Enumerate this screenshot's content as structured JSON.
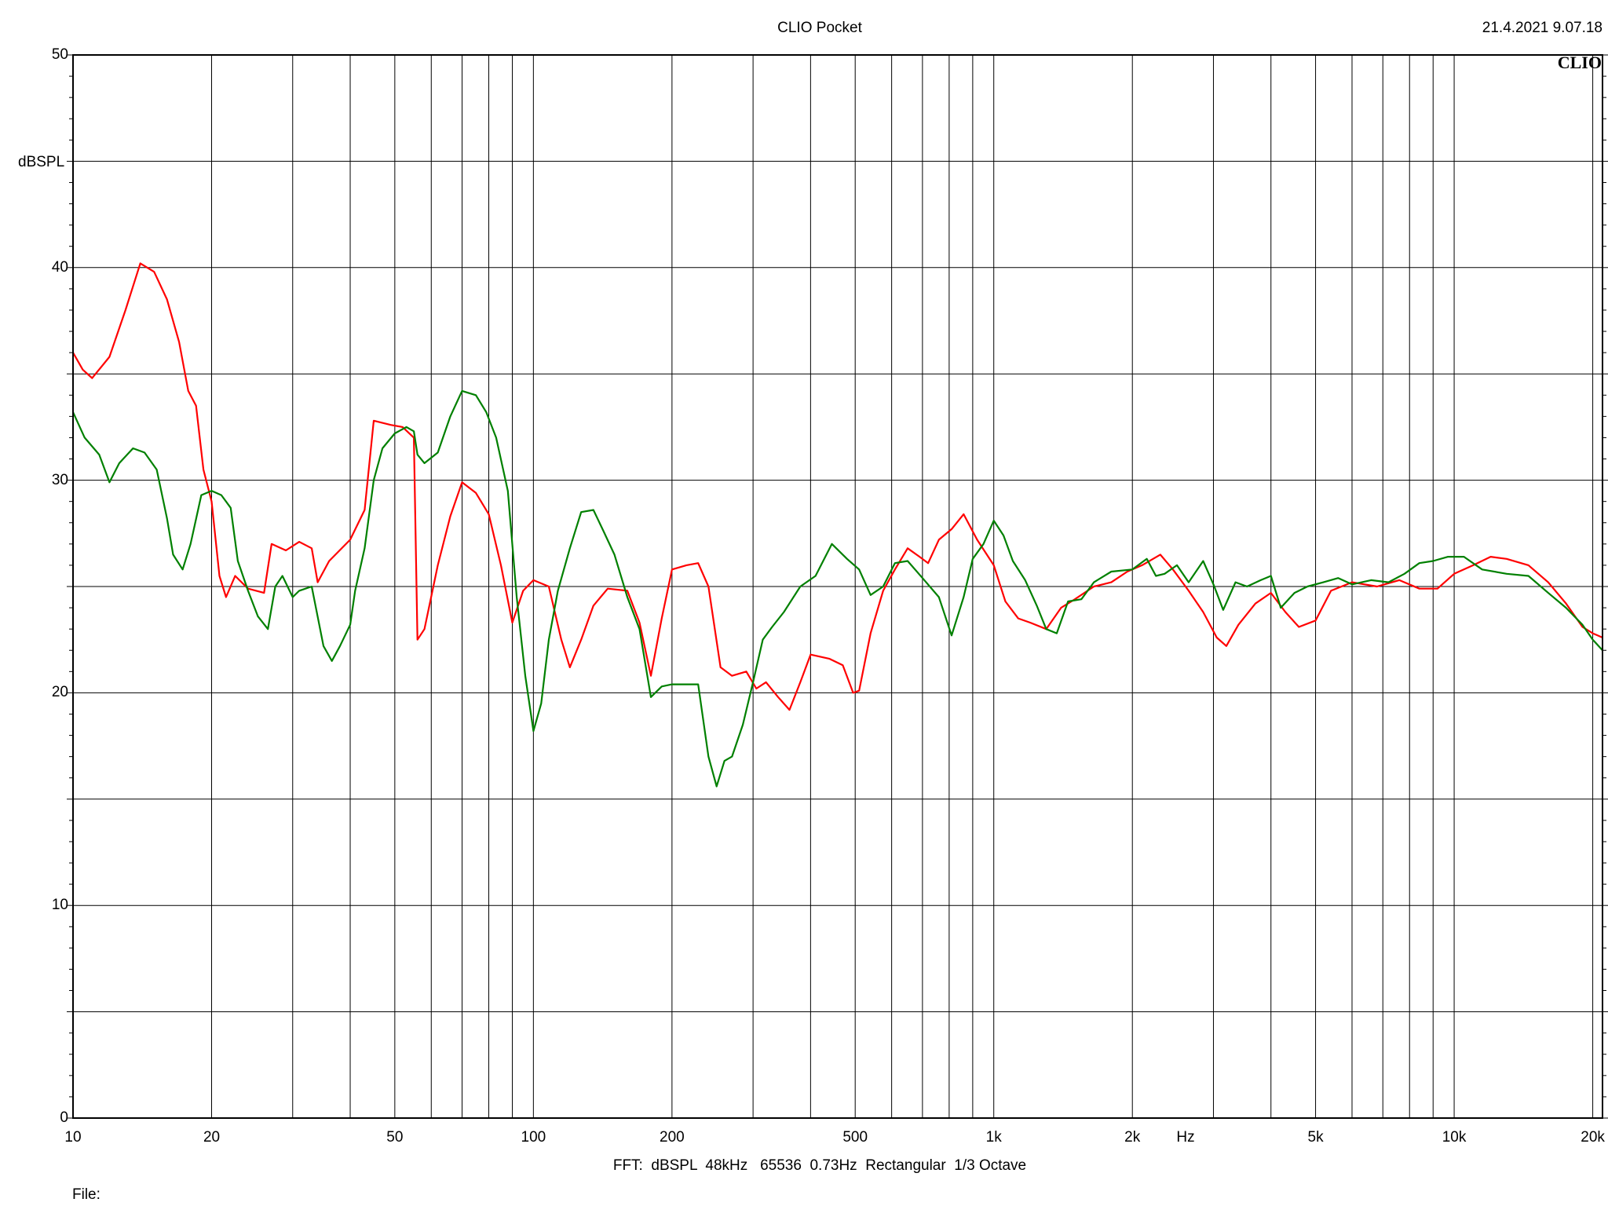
{
  "header": {
    "title": "CLIO Pocket",
    "timestamp": "21.4.2021 9.07.18",
    "logo": "CLIO"
  },
  "footer": {
    "settings": "FFT:  dBSPL  48kHz   65536  0.73Hz  Rectangular  1/3 Octave",
    "file_label": "File:"
  },
  "chart_data": {
    "type": "line",
    "x_scale": "log",
    "xlim": [
      10,
      21000
    ],
    "ylim": [
      0,
      50
    ],
    "grid": true,
    "ylabel": "dBSPL",
    "xlabel": "Hz",
    "y_ticks": [
      0,
      10,
      20,
      30,
      40,
      50
    ],
    "x_ticks": [
      {
        "v": 10,
        "label": "10"
      },
      {
        "v": 20,
        "label": "20"
      },
      {
        "v": 50,
        "label": "50"
      },
      {
        "v": 100,
        "label": "100"
      },
      {
        "v": 200,
        "label": "200"
      },
      {
        "v": 500,
        "label": "500"
      },
      {
        "v": 1000,
        "label": "1k"
      },
      {
        "v": 2000,
        "label": "2k"
      },
      {
        "v": 5000,
        "label": "5k"
      },
      {
        "v": 10000,
        "label": "10k"
      },
      {
        "v": 20000,
        "label": "20k"
      }
    ],
    "series": [
      {
        "color": "#ff0000",
        "points": [
          [
            10,
            36.0
          ],
          [
            10.5,
            35.2
          ],
          [
            11,
            34.8
          ],
          [
            12,
            35.8
          ],
          [
            13,
            38.0
          ],
          [
            14,
            40.2
          ],
          [
            15,
            39.8
          ],
          [
            16,
            38.5
          ],
          [
            17,
            36.5
          ],
          [
            17.8,
            34.2
          ],
          [
            18.5,
            33.5
          ],
          [
            19.2,
            30.5
          ],
          [
            20,
            29.0
          ],
          [
            20.8,
            25.5
          ],
          [
            21.5,
            24.5
          ],
          [
            22.5,
            25.5
          ],
          [
            24,
            24.9
          ],
          [
            26,
            24.7
          ],
          [
            27,
            27.0
          ],
          [
            29,
            26.7
          ],
          [
            31,
            27.1
          ],
          [
            33,
            26.8
          ],
          [
            34,
            25.2
          ],
          [
            36,
            26.2
          ],
          [
            40,
            27.2
          ],
          [
            43,
            28.6
          ],
          [
            45,
            32.8
          ],
          [
            49,
            32.6
          ],
          [
            52,
            32.5
          ],
          [
            55,
            32.0
          ],
          [
            56,
            22.5
          ],
          [
            58,
            23.0
          ],
          [
            62,
            26.0
          ],
          [
            66,
            28.3
          ],
          [
            70,
            29.9
          ],
          [
            75,
            29.4
          ],
          [
            80,
            28.4
          ],
          [
            85,
            26.0
          ],
          [
            90,
            23.3
          ],
          [
            95,
            24.8
          ],
          [
            100,
            25.3
          ],
          [
            108,
            25.0
          ],
          [
            115,
            22.5
          ],
          [
            120,
            21.2
          ],
          [
            127,
            22.5
          ],
          [
            135,
            24.1
          ],
          [
            145,
            24.9
          ],
          [
            160,
            24.8
          ],
          [
            170,
            23.3
          ],
          [
            180,
            20.8
          ],
          [
            190,
            23.5
          ],
          [
            200,
            25.8
          ],
          [
            215,
            26.0
          ],
          [
            228,
            26.1
          ],
          [
            240,
            25.0
          ],
          [
            255,
            21.2
          ],
          [
            270,
            20.8
          ],
          [
            290,
            21.0
          ],
          [
            305,
            20.2
          ],
          [
            320,
            20.5
          ],
          [
            340,
            19.8
          ],
          [
            360,
            19.2
          ],
          [
            380,
            20.5
          ],
          [
            400,
            21.8
          ],
          [
            440,
            21.6
          ],
          [
            470,
            21.3
          ],
          [
            495,
            20.0
          ],
          [
            510,
            20.1
          ],
          [
            540,
            22.8
          ],
          [
            575,
            24.8
          ],
          [
            610,
            25.8
          ],
          [
            650,
            26.8
          ],
          [
            690,
            26.4
          ],
          [
            720,
            26.1
          ],
          [
            760,
            27.2
          ],
          [
            810,
            27.7
          ],
          [
            860,
            28.4
          ],
          [
            920,
            27.2
          ],
          [
            1000,
            26.0
          ],
          [
            1060,
            24.3
          ],
          [
            1130,
            23.5
          ],
          [
            1200,
            23.3
          ],
          [
            1300,
            23.0
          ],
          [
            1400,
            24.0
          ],
          [
            1500,
            24.4
          ],
          [
            1650,
            25.0
          ],
          [
            1800,
            25.2
          ],
          [
            1950,
            25.7
          ],
          [
            2100,
            26.0
          ],
          [
            2300,
            26.5
          ],
          [
            2450,
            25.8
          ],
          [
            2650,
            24.8
          ],
          [
            2850,
            23.8
          ],
          [
            3050,
            22.6
          ],
          [
            3200,
            22.2
          ],
          [
            3400,
            23.2
          ],
          [
            3700,
            24.2
          ],
          [
            4000,
            24.7
          ],
          [
            4300,
            23.8
          ],
          [
            4600,
            23.1
          ],
          [
            5000,
            23.4
          ],
          [
            5400,
            24.8
          ],
          [
            6000,
            25.2
          ],
          [
            6800,
            25.0
          ],
          [
            7600,
            25.3
          ],
          [
            8400,
            24.9
          ],
          [
            9200,
            24.9
          ],
          [
            10000,
            25.6
          ],
          [
            11000,
            26.0
          ],
          [
            12000,
            26.4
          ],
          [
            13000,
            26.3
          ],
          [
            14500,
            26.0
          ],
          [
            16000,
            25.2
          ],
          [
            17500,
            24.2
          ],
          [
            19000,
            23.1
          ],
          [
            20000,
            22.8
          ],
          [
            21000,
            22.6
          ]
        ]
      },
      {
        "color": "#008000",
        "points": [
          [
            10,
            33.2
          ],
          [
            10.6,
            32.0
          ],
          [
            11.4,
            31.2
          ],
          [
            12,
            29.9
          ],
          [
            12.6,
            30.8
          ],
          [
            13.5,
            31.5
          ],
          [
            14.3,
            31.3
          ],
          [
            15.2,
            30.5
          ],
          [
            16,
            28.2
          ],
          [
            16.5,
            26.5
          ],
          [
            17.3,
            25.8
          ],
          [
            18,
            27.0
          ],
          [
            19,
            29.3
          ],
          [
            20,
            29.5
          ],
          [
            21,
            29.3
          ],
          [
            22,
            28.7
          ],
          [
            22.8,
            26.2
          ],
          [
            24,
            24.8
          ],
          [
            25.2,
            23.6
          ],
          [
            26.5,
            23.0
          ],
          [
            27.5,
            25.0
          ],
          [
            28.5,
            25.5
          ],
          [
            30,
            24.5
          ],
          [
            31,
            24.8
          ],
          [
            33,
            25.0
          ],
          [
            35,
            22.2
          ],
          [
            36.5,
            21.5
          ],
          [
            38,
            22.2
          ],
          [
            40,
            23.2
          ],
          [
            41,
            24.8
          ],
          [
            43,
            26.8
          ],
          [
            45,
            30.0
          ],
          [
            47,
            31.5
          ],
          [
            50,
            32.2
          ],
          [
            53,
            32.5
          ],
          [
            55,
            32.3
          ],
          [
            56,
            31.2
          ],
          [
            58,
            30.8
          ],
          [
            62,
            31.3
          ],
          [
            66,
            33.0
          ],
          [
            70,
            34.2
          ],
          [
            75,
            34.0
          ],
          [
            79,
            33.2
          ],
          [
            83,
            32.0
          ],
          [
            88,
            29.5
          ],
          [
            92,
            24.5
          ],
          [
            96,
            20.8
          ],
          [
            100,
            18.2
          ],
          [
            104,
            19.5
          ],
          [
            108,
            22.5
          ],
          [
            113,
            24.8
          ],
          [
            120,
            26.8
          ],
          [
            127,
            28.5
          ],
          [
            135,
            28.6
          ],
          [
            142,
            27.6
          ],
          [
            150,
            26.5
          ],
          [
            160,
            24.5
          ],
          [
            170,
            23.0
          ],
          [
            180,
            19.8
          ],
          [
            190,
            20.3
          ],
          [
            200,
            20.4
          ],
          [
            215,
            20.4
          ],
          [
            228,
            20.4
          ],
          [
            240,
            17.0
          ],
          [
            250,
            15.6
          ],
          [
            260,
            16.8
          ],
          [
            270,
            17.0
          ],
          [
            285,
            18.5
          ],
          [
            300,
            20.5
          ],
          [
            315,
            22.5
          ],
          [
            330,
            23.1
          ],
          [
            350,
            23.8
          ],
          [
            380,
            25.0
          ],
          [
            410,
            25.5
          ],
          [
            445,
            27.0
          ],
          [
            480,
            26.3
          ],
          [
            510,
            25.8
          ],
          [
            540,
            24.6
          ],
          [
            575,
            25.0
          ],
          [
            610,
            26.1
          ],
          [
            650,
            26.2
          ],
          [
            700,
            25.4
          ],
          [
            760,
            24.5
          ],
          [
            810,
            22.7
          ],
          [
            860,
            24.5
          ],
          [
            900,
            26.3
          ],
          [
            950,
            27.0
          ],
          [
            1000,
            28.1
          ],
          [
            1050,
            27.4
          ],
          [
            1100,
            26.2
          ],
          [
            1170,
            25.3
          ],
          [
            1240,
            24.1
          ],
          [
            1300,
            23.0
          ],
          [
            1370,
            22.8
          ],
          [
            1450,
            24.3
          ],
          [
            1550,
            24.4
          ],
          [
            1650,
            25.2
          ],
          [
            1800,
            25.7
          ],
          [
            2000,
            25.8
          ],
          [
            2150,
            26.3
          ],
          [
            2250,
            25.5
          ],
          [
            2350,
            25.6
          ],
          [
            2500,
            26.0
          ],
          [
            2650,
            25.2
          ],
          [
            2850,
            26.2
          ],
          [
            3000,
            25.1
          ],
          [
            3150,
            23.9
          ],
          [
            3350,
            25.2
          ],
          [
            3550,
            25.0
          ],
          [
            3800,
            25.3
          ],
          [
            4000,
            25.5
          ],
          [
            4200,
            24.0
          ],
          [
            4500,
            24.7
          ],
          [
            4800,
            25.0
          ],
          [
            5200,
            25.2
          ],
          [
            5600,
            25.4
          ],
          [
            6000,
            25.1
          ],
          [
            6600,
            25.3
          ],
          [
            7200,
            25.2
          ],
          [
            7800,
            25.6
          ],
          [
            8400,
            26.1
          ],
          [
            9000,
            26.2
          ],
          [
            9700,
            26.4
          ],
          [
            10500,
            26.4
          ],
          [
            11500,
            25.8
          ],
          [
            13000,
            25.6
          ],
          [
            14500,
            25.5
          ],
          [
            16000,
            24.7
          ],
          [
            17500,
            24.0
          ],
          [
            19000,
            23.2
          ],
          [
            20000,
            22.5
          ],
          [
            21000,
            22.0
          ]
        ]
      }
    ]
  }
}
